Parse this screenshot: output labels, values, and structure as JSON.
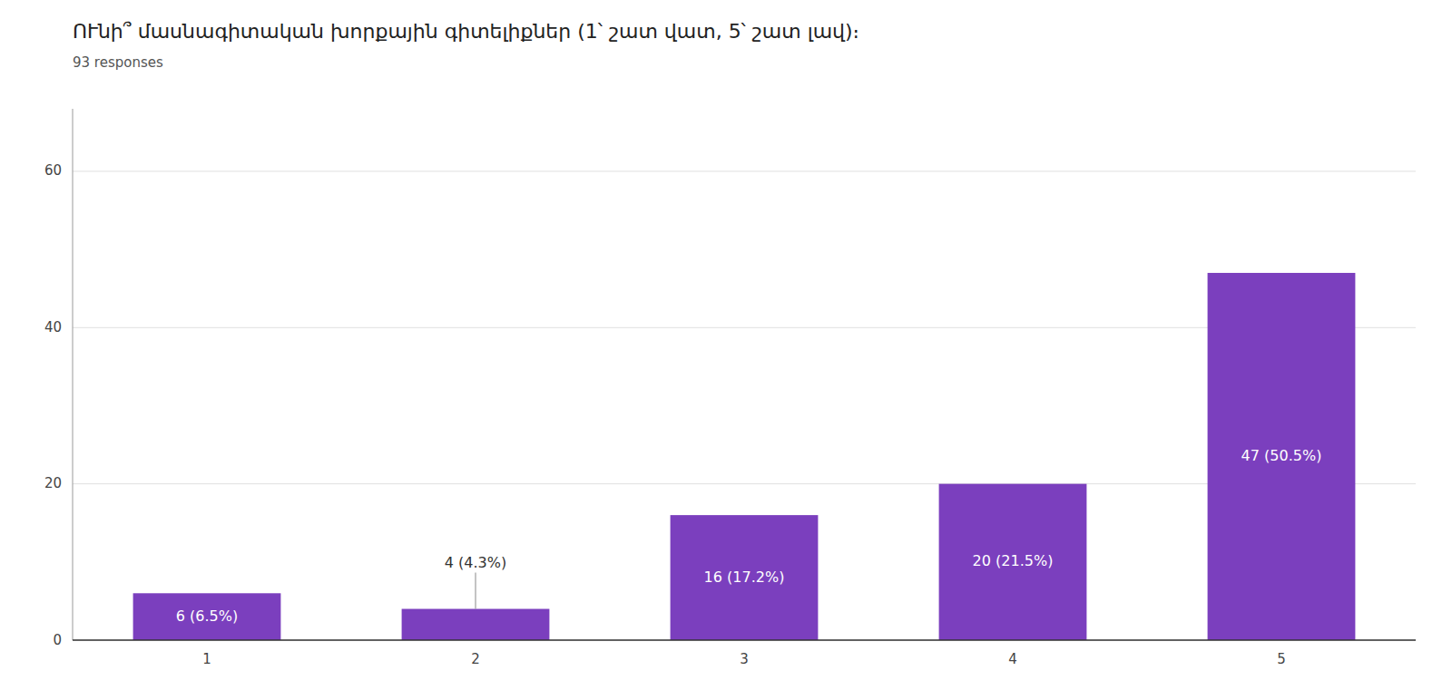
{
  "chart_data": {
    "type": "bar",
    "title": "ՈՒնի՞ մասնագիտական խորքային գիտելիքներ (1՝ շատ վատ, 5՝ շատ լավ)։",
    "subtitle": "93 responses",
    "categories": [
      1,
      2,
      3,
      4,
      5
    ],
    "values": [
      6,
      4,
      16,
      20,
      47
    ],
    "value_labels": [
      "6 (6.5%)",
      "4 (4.3%)",
      "16 (17.2%)",
      "20 (21.5%)",
      "47 (50.5%)"
    ],
    "data_labels": true,
    "color": "#7B3FBE",
    "ylim": [
      0,
      68
    ],
    "yticks": [
      0,
      20,
      40,
      60
    ],
    "grid": true
  }
}
